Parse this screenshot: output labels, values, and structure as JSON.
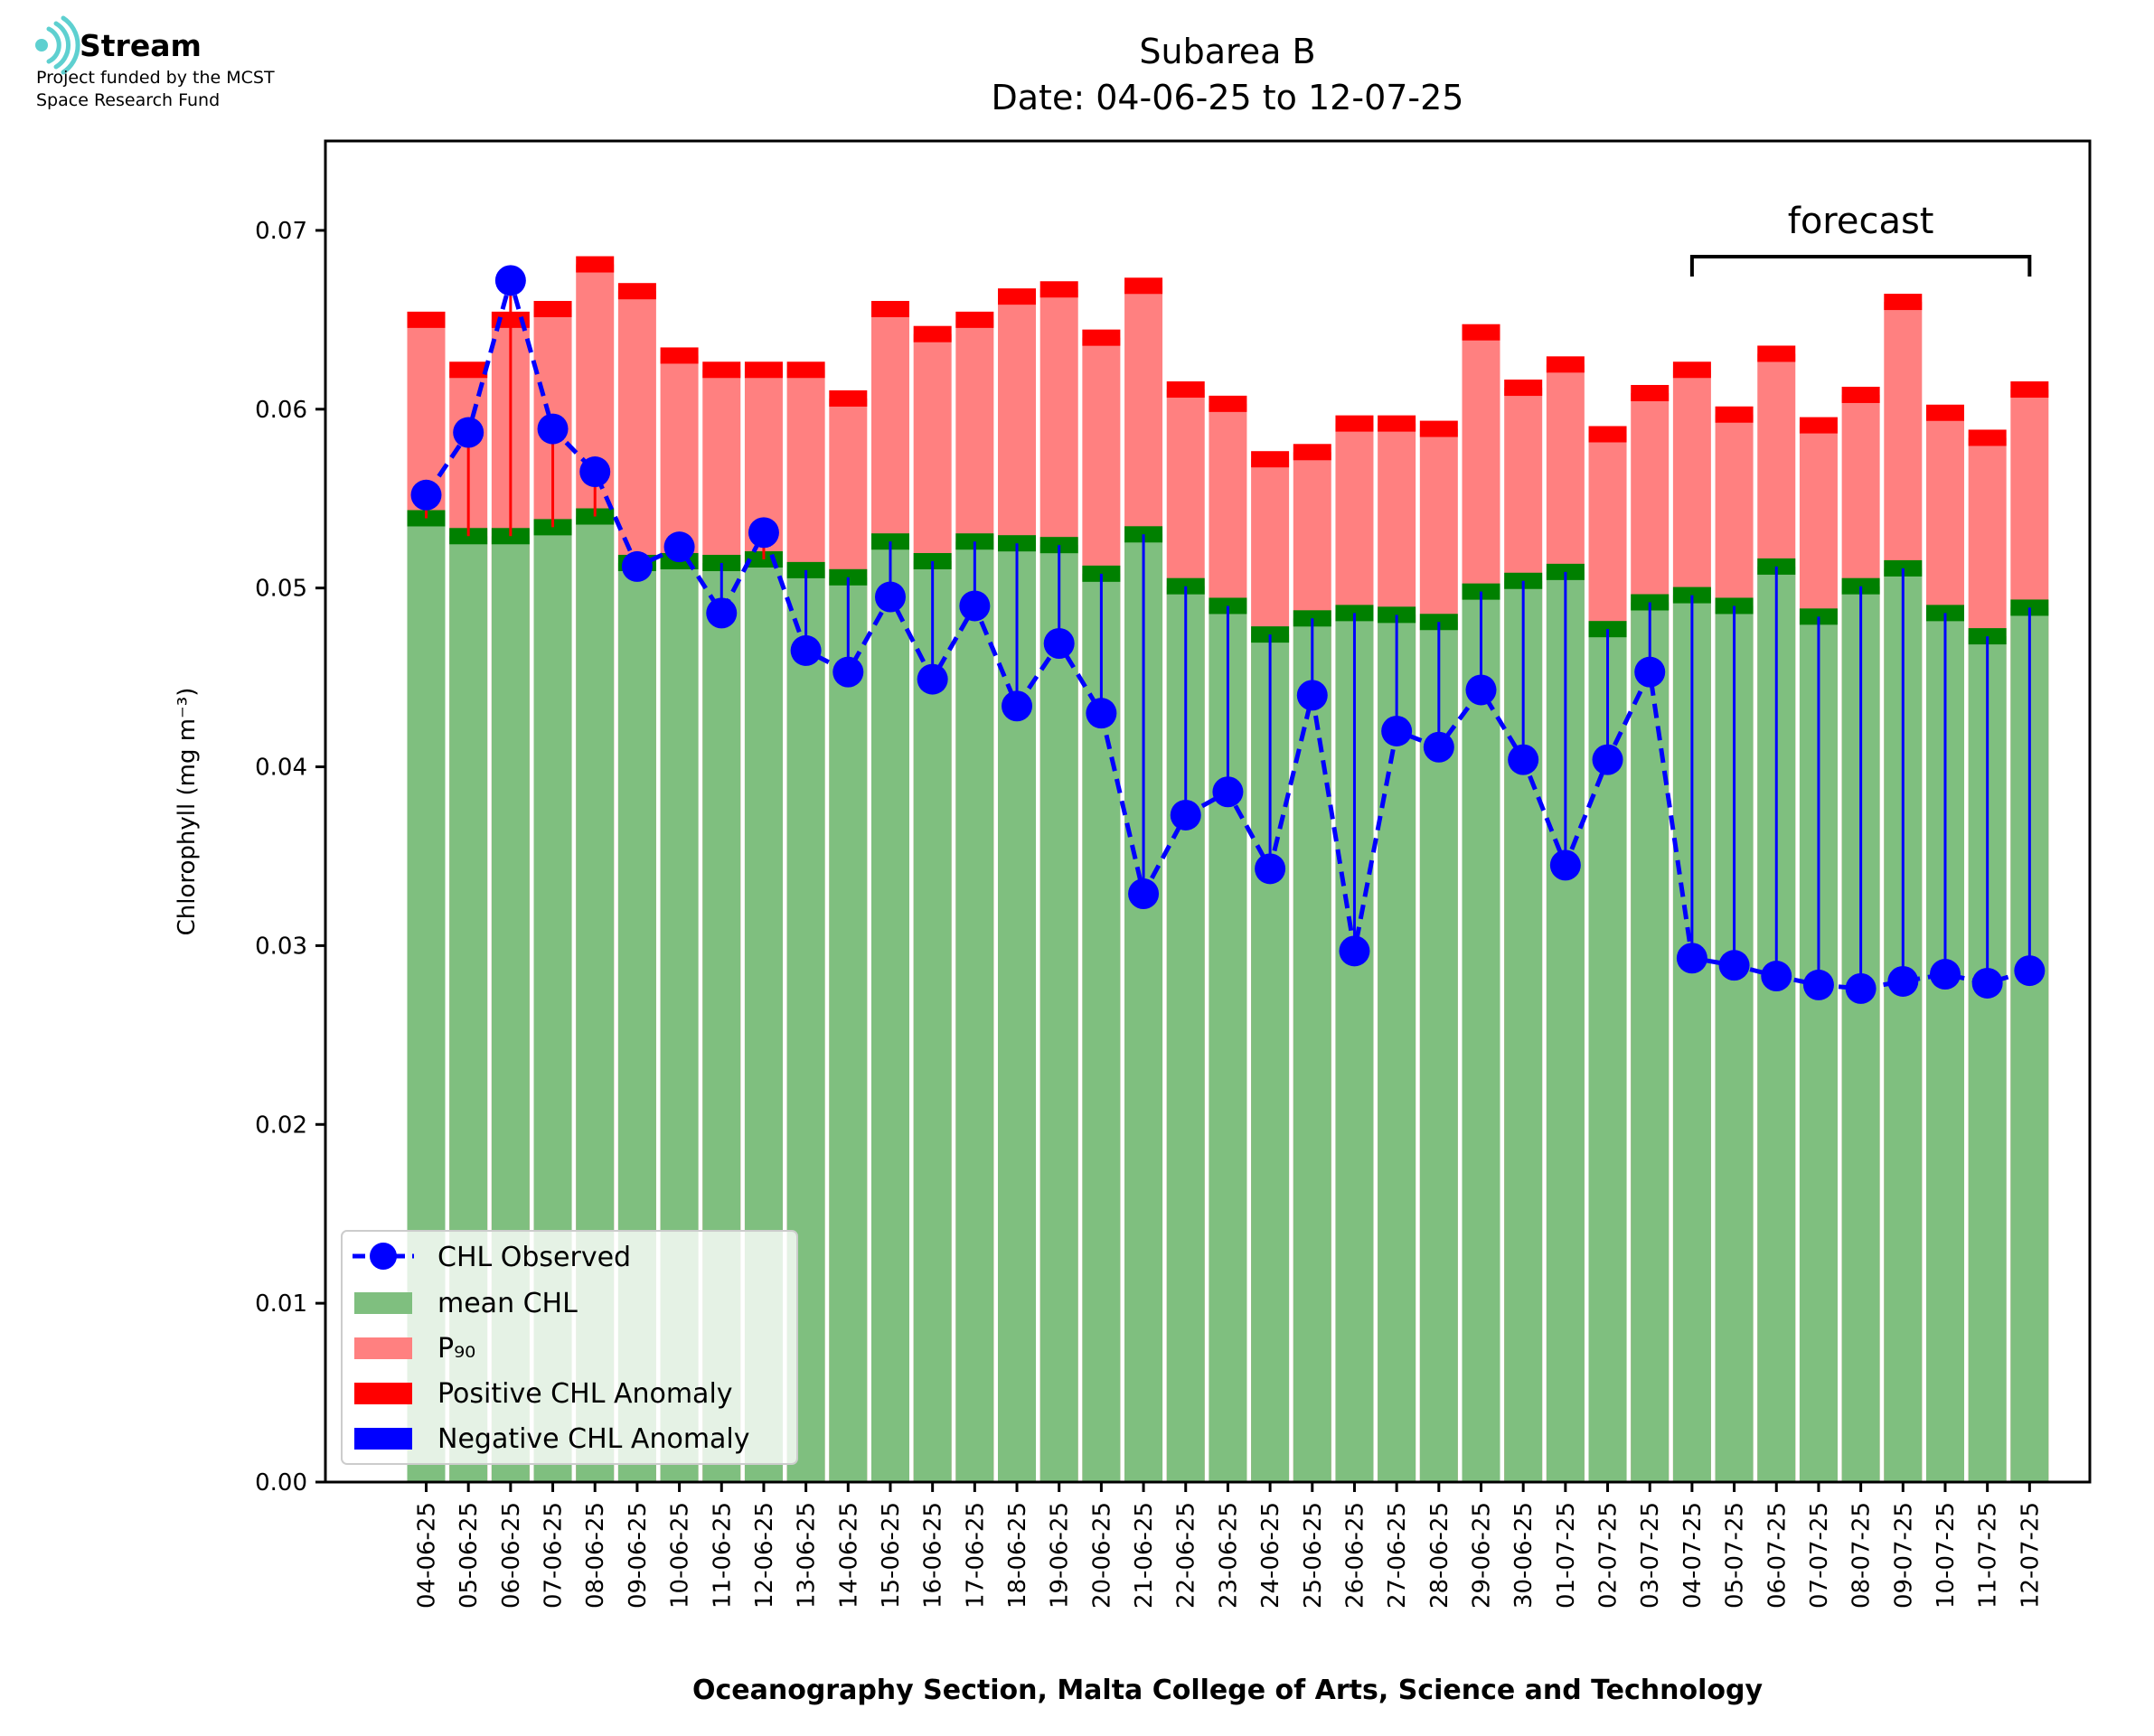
{
  "logo": {
    "name": "Stream",
    "line1": "Project funded by the MCST",
    "line2": "Space Research Fund"
  },
  "colors": {
    "mean_bar": "#7fbf7f",
    "p90_bar": "#ff8080",
    "mean_cap": "#008000",
    "positive": "#ff0000",
    "negative": "#0000ff",
    "observed": "#0000ff",
    "logo_accent": "#5ed0d0"
  },
  "chart_data": {
    "type": "bar",
    "title": "Subarea B",
    "subtitle": "Date: 04-06-25 to 12-07-25",
    "xlabel": "Oceanography Section, Malta College of Arts, Science and Technology",
    "ylabel": "Chlorophyll (mg m⁻³)",
    "ylim": [
      0,
      0.075
    ],
    "yticks": [
      0.0,
      0.01,
      0.02,
      0.03,
      0.04,
      0.05,
      0.06,
      0.07
    ],
    "ytick_labels": [
      "0.00",
      "0.01",
      "0.02",
      "0.03",
      "0.04",
      "0.05",
      "0.06",
      "0.07"
    ],
    "grid": false,
    "legend_position": "lower-left",
    "forecast_label": "forecast",
    "forecast_from": "04-07-25",
    "forecast_to": "12-07-25",
    "categories": [
      "04-06-25",
      "05-06-25",
      "06-06-25",
      "07-06-25",
      "08-06-25",
      "09-06-25",
      "10-06-25",
      "11-06-25",
      "12-06-25",
      "13-06-25",
      "14-06-25",
      "15-06-25",
      "16-06-25",
      "17-06-25",
      "18-06-25",
      "19-06-25",
      "20-06-25",
      "21-06-25",
      "22-06-25",
      "23-06-25",
      "24-06-25",
      "25-06-25",
      "26-06-25",
      "27-06-25",
      "28-06-25",
      "29-06-25",
      "30-06-25",
      "01-07-25",
      "02-07-25",
      "03-07-25",
      "04-07-25",
      "05-07-25",
      "06-07-25",
      "07-07-25",
      "08-07-25",
      "09-07-25",
      "10-07-25",
      "11-07-25",
      "12-07-25"
    ],
    "series": [
      {
        "name": "CHL Observed",
        "style": "line-marker-dashed",
        "values": [
          0.0552,
          0.0587,
          0.0672,
          0.0589,
          0.0565,
          0.0512,
          0.0523,
          0.0486,
          0.0531,
          0.0465,
          0.0453,
          0.0495,
          0.0449,
          0.049,
          0.0434,
          0.0469,
          0.043,
          0.0329,
          0.0373,
          0.0386,
          0.0343,
          0.044,
          0.0297,
          0.042,
          0.0411,
          0.0443,
          0.0404,
          0.0345,
          0.0404,
          0.0453,
          0.0293,
          0.0289,
          0.0283,
          0.0278,
          0.0276,
          0.028,
          0.0284,
          0.0279,
          0.0286
        ]
      },
      {
        "name": "mean CHL",
        "style": "bar",
        "values": [
          0.0539,
          0.0529,
          0.0529,
          0.0534,
          0.054,
          0.0514,
          0.0515,
          0.0514,
          0.0516,
          0.051,
          0.0506,
          0.0526,
          0.0515,
          0.0526,
          0.0525,
          0.0524,
          0.0508,
          0.053,
          0.0501,
          0.049,
          0.0474,
          0.0483,
          0.0486,
          0.0485,
          0.0481,
          0.0498,
          0.0504,
          0.0509,
          0.0477,
          0.0492,
          0.0496,
          0.049,
          0.0512,
          0.0484,
          0.0501,
          0.0511,
          0.0486,
          0.0473,
          0.0489
        ]
      },
      {
        "name": "P₉₀",
        "style": "bar",
        "values": [
          0.065,
          0.0622,
          0.065,
          0.0656,
          0.0681,
          0.0666,
          0.063,
          0.0622,
          0.0622,
          0.0622,
          0.0606,
          0.0656,
          0.0642,
          0.065,
          0.0663,
          0.0667,
          0.064,
          0.0669,
          0.0611,
          0.0603,
          0.0572,
          0.0576,
          0.0592,
          0.0592,
          0.0589,
          0.0643,
          0.0612,
          0.0625,
          0.0586,
          0.0609,
          0.0622,
          0.0597,
          0.0631,
          0.0591,
          0.0608,
          0.066,
          0.0598,
          0.0584,
          0.0611
        ]
      }
    ],
    "legend": [
      "CHL Observed",
      "mean CHL",
      "P₉₀",
      "Positive CHL Anomaly",
      "Negative CHL Anomaly"
    ]
  }
}
